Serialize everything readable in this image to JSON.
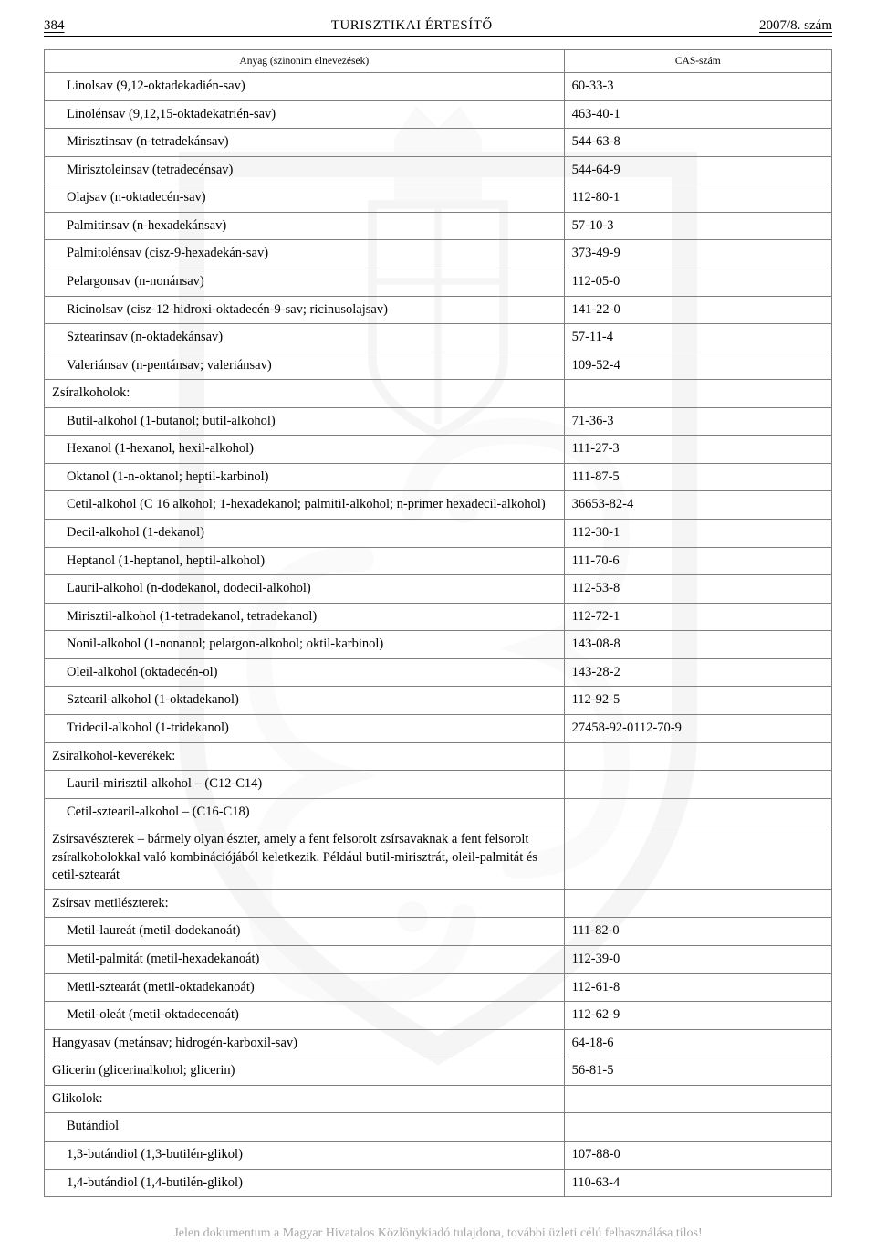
{
  "header": {
    "pageNumber": "384",
    "title": "TURISZTIKAI ÉRTESÍTŐ",
    "issue": "2007/8. szám"
  },
  "tableHeaders": {
    "col1": "Anyag (szinonim elnevezések)",
    "col2": "CAS-szám"
  },
  "rows": [
    {
      "indent": 1,
      "name": "Linolsav (9,12-oktadekadién-sav)",
      "cas": "60-33-3"
    },
    {
      "indent": 1,
      "name": "Linolénsav (9,12,15-oktadekatrién-sav)",
      "cas": "463-40-1"
    },
    {
      "indent": 1,
      "name": "Mirisztinsav (n-tetradekánsav)",
      "cas": "544-63-8"
    },
    {
      "indent": 1,
      "name": "Mirisztoleinsav (tetradecénsav)",
      "cas": "544-64-9"
    },
    {
      "indent": 1,
      "name": "Olajsav (n-oktadecén-sav)",
      "cas": "112-80-1"
    },
    {
      "indent": 1,
      "name": "Palmitinsav (n-hexadekánsav)",
      "cas": "57-10-3"
    },
    {
      "indent": 1,
      "name": "Palmitolénsav (cisz-9-hexadekán-sav)",
      "cas": "373-49-9"
    },
    {
      "indent": 1,
      "name": "Pelargonsav (n-nonánsav)",
      "cas": "112-05-0"
    },
    {
      "indent": 1,
      "name": "Ricinolsav (cisz-12-hidroxi-oktadecén-9-sav; ricinusolajsav)",
      "cas": "141-22-0"
    },
    {
      "indent": 1,
      "name": "Sztearinsav (n-oktadekánsav)",
      "cas": "57-11-4"
    },
    {
      "indent": 1,
      "name": "Valeriánsav (n-pentánsav; valeriánsav)",
      "cas": "109-52-4"
    },
    {
      "indent": 0,
      "name": "Zsíralkoholok:",
      "cas": ""
    },
    {
      "indent": 1,
      "name": "Butil-alkohol (1-butanol; butil-alkohol)",
      "cas": "71-36-3"
    },
    {
      "indent": 1,
      "name": "Hexanol (1-hexanol, hexil-alkohol)",
      "cas": "111-27-3"
    },
    {
      "indent": 1,
      "name": "Oktanol (1-n-oktanol; heptil-karbinol)",
      "cas": "111-87-5"
    },
    {
      "indent": 1,
      "name": "Cetil-alkohol (C 16 alkohol; 1-hexadekanol; palmitil-alkohol; n-primer hexadecil-alkohol)",
      "cas": "36653-82-4"
    },
    {
      "indent": 1,
      "name": "Decil-alkohol (1-dekanol)",
      "cas": "112-30-1"
    },
    {
      "indent": 1,
      "name": "Heptanol (1-heptanol, heptil-alkohol)",
      "cas": "111-70-6"
    },
    {
      "indent": 1,
      "name": "Lauril-alkohol (n-dodekanol, dodecil-alkohol)",
      "cas": "112-53-8"
    },
    {
      "indent": 1,
      "name": "Mirisztil-alkohol (1-tetradekanol, tetradekanol)",
      "cas": "112-72-1"
    },
    {
      "indent": 1,
      "name": "Nonil-alkohol (1-nonanol; pelargon-alkohol; oktil-karbinol)",
      "cas": "143-08-8"
    },
    {
      "indent": 1,
      "name": "Oleil-alkohol (oktadecén-ol)",
      "cas": "143-28-2"
    },
    {
      "indent": 1,
      "name": "Sztearil-alkohol (1-oktadekanol)",
      "cas": "112-92-5"
    },
    {
      "indent": 1,
      "name": "Tridecil-alkohol (1-tridekanol)",
      "cas": "27458-92-0112-70-9"
    },
    {
      "indent": 0,
      "name": "Zsíralkohol-keverékek:",
      "cas": ""
    },
    {
      "indent": 1,
      "name": "Lauril-mirisztil-alkohol – (C12-C14)",
      "cas": ""
    },
    {
      "indent": 1,
      "name": "Cetil-sztearil-alkohol – (C16-C18)",
      "cas": ""
    },
    {
      "indent": 0,
      "name": "Zsírsavészterek – bármely olyan észter, amely a fent felsorolt zsírsavaknak a fent felsorolt zsíralkoholokkal való kombinációjából keletkezik. Például butil-mirisztrát, oleil-palmitát és cetil-sztearát",
      "cas": ""
    },
    {
      "indent": 0,
      "name": "Zsírsav metilészterek:",
      "cas": ""
    },
    {
      "indent": 1,
      "name": "Metil-laureát (metil-dodekanoát)",
      "cas": "111-82-0"
    },
    {
      "indent": 1,
      "name": "Metil-palmitát (metil-hexadekanoát)",
      "cas": "112-39-0"
    },
    {
      "indent": 1,
      "name": "Metil-sztearát (metil-oktadekanoát)",
      "cas": "112-61-8"
    },
    {
      "indent": 1,
      "name": "Metil-oleát (metil-oktadecenoát)",
      "cas": "112-62-9"
    },
    {
      "indent": 0,
      "name": "Hangyasav (metánsav; hidrogén-karboxil-sav)",
      "cas": "64-18-6"
    },
    {
      "indent": 0,
      "name": "Glicerin (glicerinalkohol; glicerin)",
      "cas": "56-81-5"
    },
    {
      "indent": 0,
      "name": "Glikolok:",
      "cas": ""
    },
    {
      "indent": 1,
      "name": "Butándiol",
      "cas": ""
    },
    {
      "indent": 1,
      "name": "1,3-butándiol (1,3-butilén-glikol)",
      "cas": "107-88-0"
    },
    {
      "indent": 1,
      "name": "1,4-butándiol (1,4-butilén-glikol)",
      "cas": "110-63-4"
    }
  ],
  "footer": {
    "note": "Jelen dokumentum a Magyar Hivatalos Közlönykiadó tulajdona, további üzleti célú felhasználása tilos!"
  },
  "colors": {
    "border": "#808080",
    "text": "#000000",
    "footerText": "#a8a8a8",
    "watermark": "#b5b5b5"
  }
}
